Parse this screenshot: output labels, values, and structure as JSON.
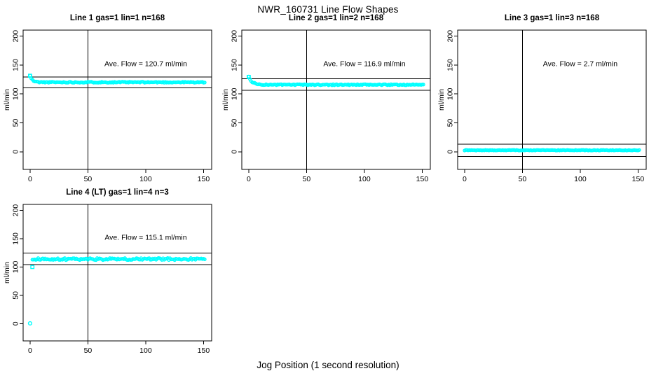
{
  "page": {
    "title": "NWR_160731  Line Flow Shapes",
    "xlabel": "Jog Position (1 second resolution)",
    "background": "#FFFFFF",
    "axis_color": "#000000",
    "point_color": "#00FFFF"
  },
  "chart_data": [
    {
      "type": "scatter",
      "title": "Line 1 gas=1 lin=1 n=168",
      "annotation": "Ave. Flow =  120.7  ml/min",
      "ave_flow_ml_min": 120.7,
      "n": 168,
      "ylabel": "ml/min",
      "xticks": [
        0,
        50,
        100,
        150
      ],
      "yticks": [
        0,
        50,
        100,
        150,
        200
      ],
      "xlim": [
        -6,
        157
      ],
      "ylim": [
        -30.5,
        210.5
      ],
      "vline_x": 50,
      "hlines": [
        129.5,
        110.5
      ],
      "marker_color": "#00FFFF",
      "points_model": {
        "x_start": 0,
        "x_end": 151,
        "x_step": 1,
        "y_start": 131.5,
        "y_flat": 120.3,
        "decay_tau": 2.0,
        "jitter": 0.9,
        "seed": 11
      },
      "extra_points": [
        {
          "x": 0,
          "y": 131.5,
          "marker": "square"
        }
      ]
    },
    {
      "type": "scatter",
      "title": "Line 2 gas=1 lin=2 n=168",
      "annotation": "Ave. Flow =  116.9  ml/min",
      "ave_flow_ml_min": 116.9,
      "n": 168,
      "ylabel": "ml/min",
      "xticks": [
        0,
        50,
        100,
        150
      ],
      "yticks": [
        0,
        50,
        100,
        150,
        200
      ],
      "xlim": [
        -6,
        157
      ],
      "ylim": [
        -30.5,
        210.5
      ],
      "vline_x": 50,
      "hlines": [
        126.5,
        106.5
      ],
      "marker_color": "#00FFFF",
      "points_model": {
        "x_start": 0,
        "x_end": 151,
        "x_step": 1,
        "y_start": 129.5,
        "y_flat": 116.0,
        "decay_tau": 3.0,
        "jitter": 0.9,
        "seed": 23
      },
      "extra_points": [
        {
          "x": 0,
          "y": 129.5,
          "marker": "square"
        }
      ]
    },
    {
      "type": "scatter",
      "title": "Line 3 gas=1 lin=3 n=168",
      "annotation": "Ave. Flow =  2.7  ml/min",
      "ave_flow_ml_min": 2.7,
      "n": 168,
      "ylabel": "ml/min",
      "xticks": [
        0,
        50,
        100,
        150
      ],
      "yticks": [
        0,
        50,
        100,
        150,
        200
      ],
      "xlim": [
        -6,
        157
      ],
      "ylim": [
        -30.5,
        210.5
      ],
      "vline_x": 50,
      "hlines": [
        13.0,
        -8.0
      ],
      "marker_color": "#00FFFF",
      "points_model": {
        "x_start": 0,
        "x_end": 151,
        "x_step": 1,
        "y_start": 2.7,
        "y_flat": 2.7,
        "decay_tau": 2.0,
        "jitter": 0.5,
        "seed": 37
      },
      "extra_points": []
    },
    {
      "type": "scatter",
      "title": "Line 4 (LT) gas=1 lin=4 n=3",
      "annotation": "Ave. Flow =  115.1  ml/min",
      "ave_flow_ml_min": 115.1,
      "n": 3,
      "ylabel": "ml/min",
      "xticks": [
        0,
        50,
        100,
        150
      ],
      "yticks": [
        0,
        50,
        100,
        150,
        200
      ],
      "xlim": [
        -6,
        157
      ],
      "ylim": [
        -30.5,
        210.5
      ],
      "vline_x": 50,
      "hlines": [
        124.5,
        104.5
      ],
      "marker_color": "#00FFFF",
      "points_model": {
        "x_start": 2,
        "x_end": 151,
        "x_step": 1,
        "y_start": 114.0,
        "y_flat": 114.0,
        "decay_tau": 2.0,
        "jitter": 1.8,
        "seed": 51
      },
      "extra_points": [
        {
          "x": 0,
          "y": 0.5,
          "marker": "circle"
        },
        {
          "x": 2,
          "y": 100.0,
          "marker": "square"
        }
      ]
    }
  ]
}
